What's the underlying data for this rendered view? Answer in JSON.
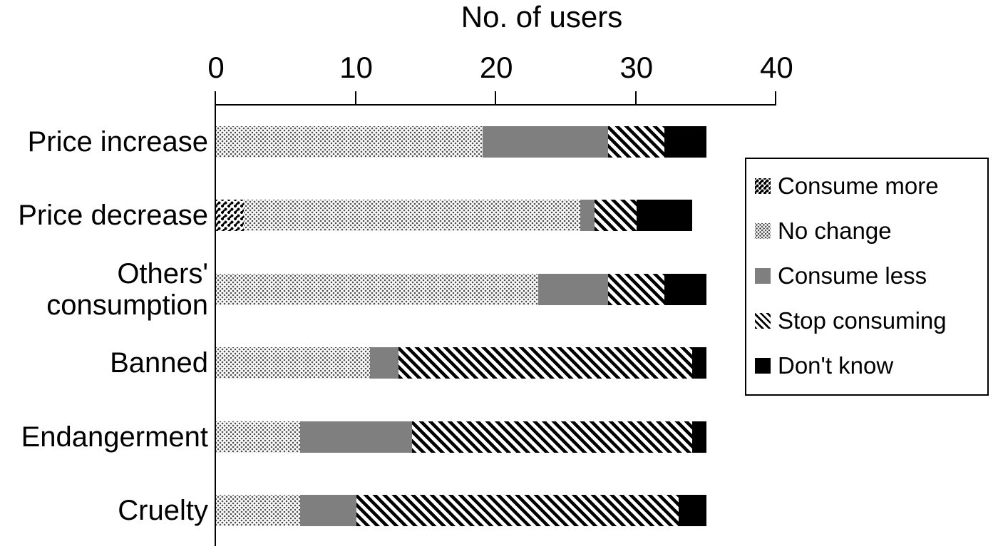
{
  "chart_data": {
    "type": "bar",
    "orientation": "horizontal",
    "stacked": true,
    "title": "No. of users",
    "categories": [
      "Price increase",
      "Price decrease",
      "Others' consumption",
      "Banned",
      "Endangerment",
      "Cruelty"
    ],
    "series": [
      {
        "name": "Consume more",
        "pattern": "dense-dots",
        "values": [
          0,
          2,
          0,
          0,
          0,
          0
        ]
      },
      {
        "name": "No change",
        "pattern": "light-dots",
        "values": [
          19,
          24,
          23,
          11,
          6,
          6
        ]
      },
      {
        "name": "Consume less",
        "pattern": "solid-gray",
        "color": "#7f7f7f",
        "values": [
          9,
          1,
          5,
          2,
          8,
          4
        ]
      },
      {
        "name": "Stop consuming",
        "pattern": "stripes",
        "values": [
          4,
          3,
          4,
          21,
          20,
          23
        ]
      },
      {
        "name": "Don't know",
        "pattern": "solid-black",
        "color": "#000000",
        "values": [
          3,
          4,
          3,
          1,
          1,
          2
        ]
      }
    ],
    "totals": [
      35,
      34,
      35,
      35,
      35,
      35
    ],
    "x_axis": {
      "min": 0,
      "max": 40,
      "ticks": [
        0,
        10,
        20,
        30,
        40
      ],
      "position": "top"
    },
    "grid": false,
    "legend_position": "right",
    "colors": {
      "foreground": "#000000",
      "background": "#ffffff",
      "gray": "#7f7f7f"
    }
  }
}
